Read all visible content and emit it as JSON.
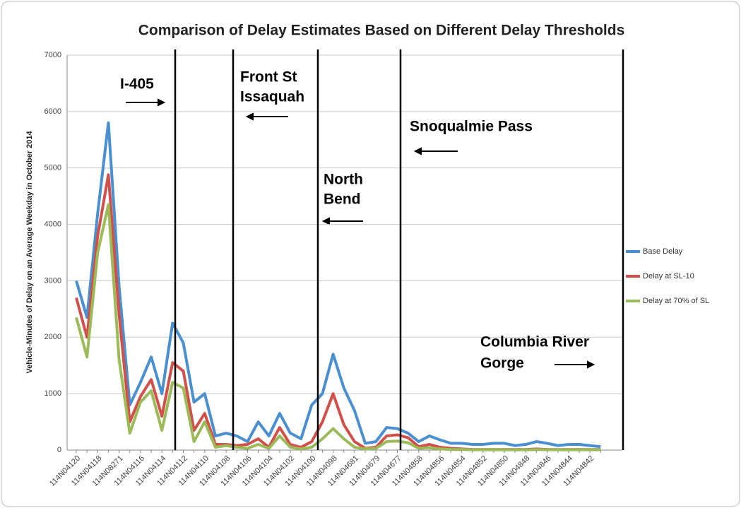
{
  "chart_data": {
    "type": "line",
    "title": "Comparison of Delay Estimates Based on Different Delay Thresholds",
    "y_label": "Vehicle-Minutes of Delay on an Average Weekday in October 2014",
    "categories": [
      "114N04120",
      null,
      "114N04118",
      null,
      "114N08271",
      null,
      "114N04116",
      null,
      "114N04114",
      null,
      "114N04112",
      null,
      "114N04110",
      null,
      "114N04108",
      null,
      "114N04106",
      null,
      "114N04104",
      null,
      "114N04102",
      null,
      "114N04100",
      null,
      "114N04098",
      null,
      "114N04681",
      null,
      "114N04679",
      null,
      "114N04677",
      null,
      "114N04858",
      null,
      "114N04856",
      null,
      "114N04854",
      null,
      "114N04852",
      null,
      "114N04850",
      null,
      "114N04848",
      null,
      "114N04846",
      null,
      "114N04844",
      null,
      "114N04842",
      null
    ],
    "series": [
      {
        "name": "Base Delay",
        "color": "#4a8fcf",
        "values": [
          3000,
          2350,
          4200,
          5800,
          2900,
          800,
          1200,
          1650,
          1000,
          2250,
          1900,
          850,
          1000,
          250,
          300,
          250,
          150,
          500,
          250,
          650,
          300,
          200,
          800,
          1000,
          1700,
          1100,
          700,
          120,
          150,
          400,
          380,
          300,
          150,
          250,
          180,
          120,
          120,
          100,
          100,
          120,
          120,
          80,
          100,
          150,
          120,
          80,
          100,
          100,
          80,
          60
        ]
      },
      {
        "name": "Delay at SL-10",
        "color": "#d2504a",
        "values": [
          2700,
          2000,
          3800,
          4880,
          2400,
          500,
          950,
          1250,
          600,
          1550,
          1400,
          350,
          650,
          100,
          100,
          80,
          100,
          200,
          50,
          400,
          100,
          50,
          150,
          500,
          1000,
          450,
          150,
          30,
          50,
          250,
          270,
          220,
          60,
          100,
          50,
          30,
          20,
          10,
          10,
          10,
          10,
          10,
          10,
          20,
          10,
          10,
          10,
          10,
          10,
          10
        ]
      },
      {
        "name": "Delay at 70% of SL",
        "color": "#9bbb59",
        "values": [
          2350,
          1650,
          3500,
          4350,
          1600,
          300,
          850,
          1050,
          350,
          1200,
          1100,
          150,
          500,
          50,
          80,
          50,
          30,
          100,
          30,
          250,
          50,
          20,
          50,
          200,
          380,
          200,
          50,
          20,
          30,
          150,
          160,
          130,
          30,
          40,
          20,
          10,
          10,
          5,
          5,
          5,
          5,
          5,
          5,
          10,
          5,
          5,
          5,
          5,
          5,
          5
        ]
      }
    ],
    "ylim": [
      0,
      7000
    ],
    "yticks": [
      0,
      1000,
      2000,
      3000,
      4000,
      5000,
      6000,
      7000
    ],
    "grid": true,
    "legend": "right",
    "annotations": [
      "I-405",
      "Front St",
      "Issaquah",
      "Snoqualmie Pass",
      "North",
      "Bend",
      "Columbia River",
      "Gorge"
    ]
  }
}
